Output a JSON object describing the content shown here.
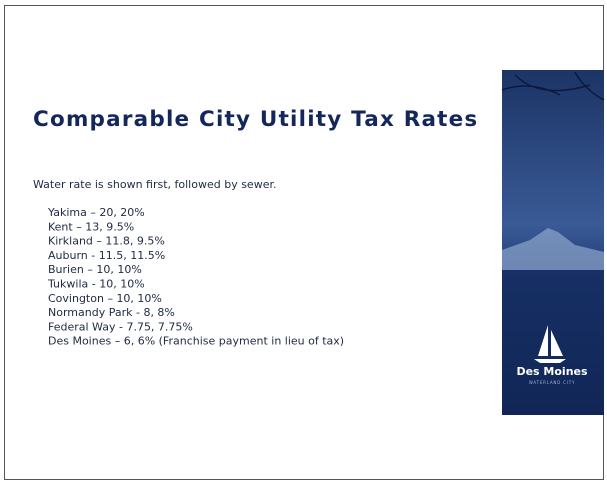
{
  "header": {
    "title": "Comparable City Utility Tax Rates"
  },
  "body": {
    "intro": "Water rate is shown first, followed by sewer.",
    "items": [
      "Yakima – 20, 20%",
      "Kent – 13, 9.5%",
      "Kirkland – 11.8, 9.5%",
      "Auburn - 11.5, 11.5%",
      "Burien – 10, 10%",
      "Tukwila - 10, 10%",
      "Covington – 10, 10%",
      "Normandy Park - 8, 8%",
      "Federal Way - 7.75, 7.75%",
      "Des Moines – 6, 6% (Franchise payment in lieu of tax)"
    ]
  },
  "logo": {
    "name": "Des Moines",
    "tagline": "WATERLAND CITY"
  }
}
